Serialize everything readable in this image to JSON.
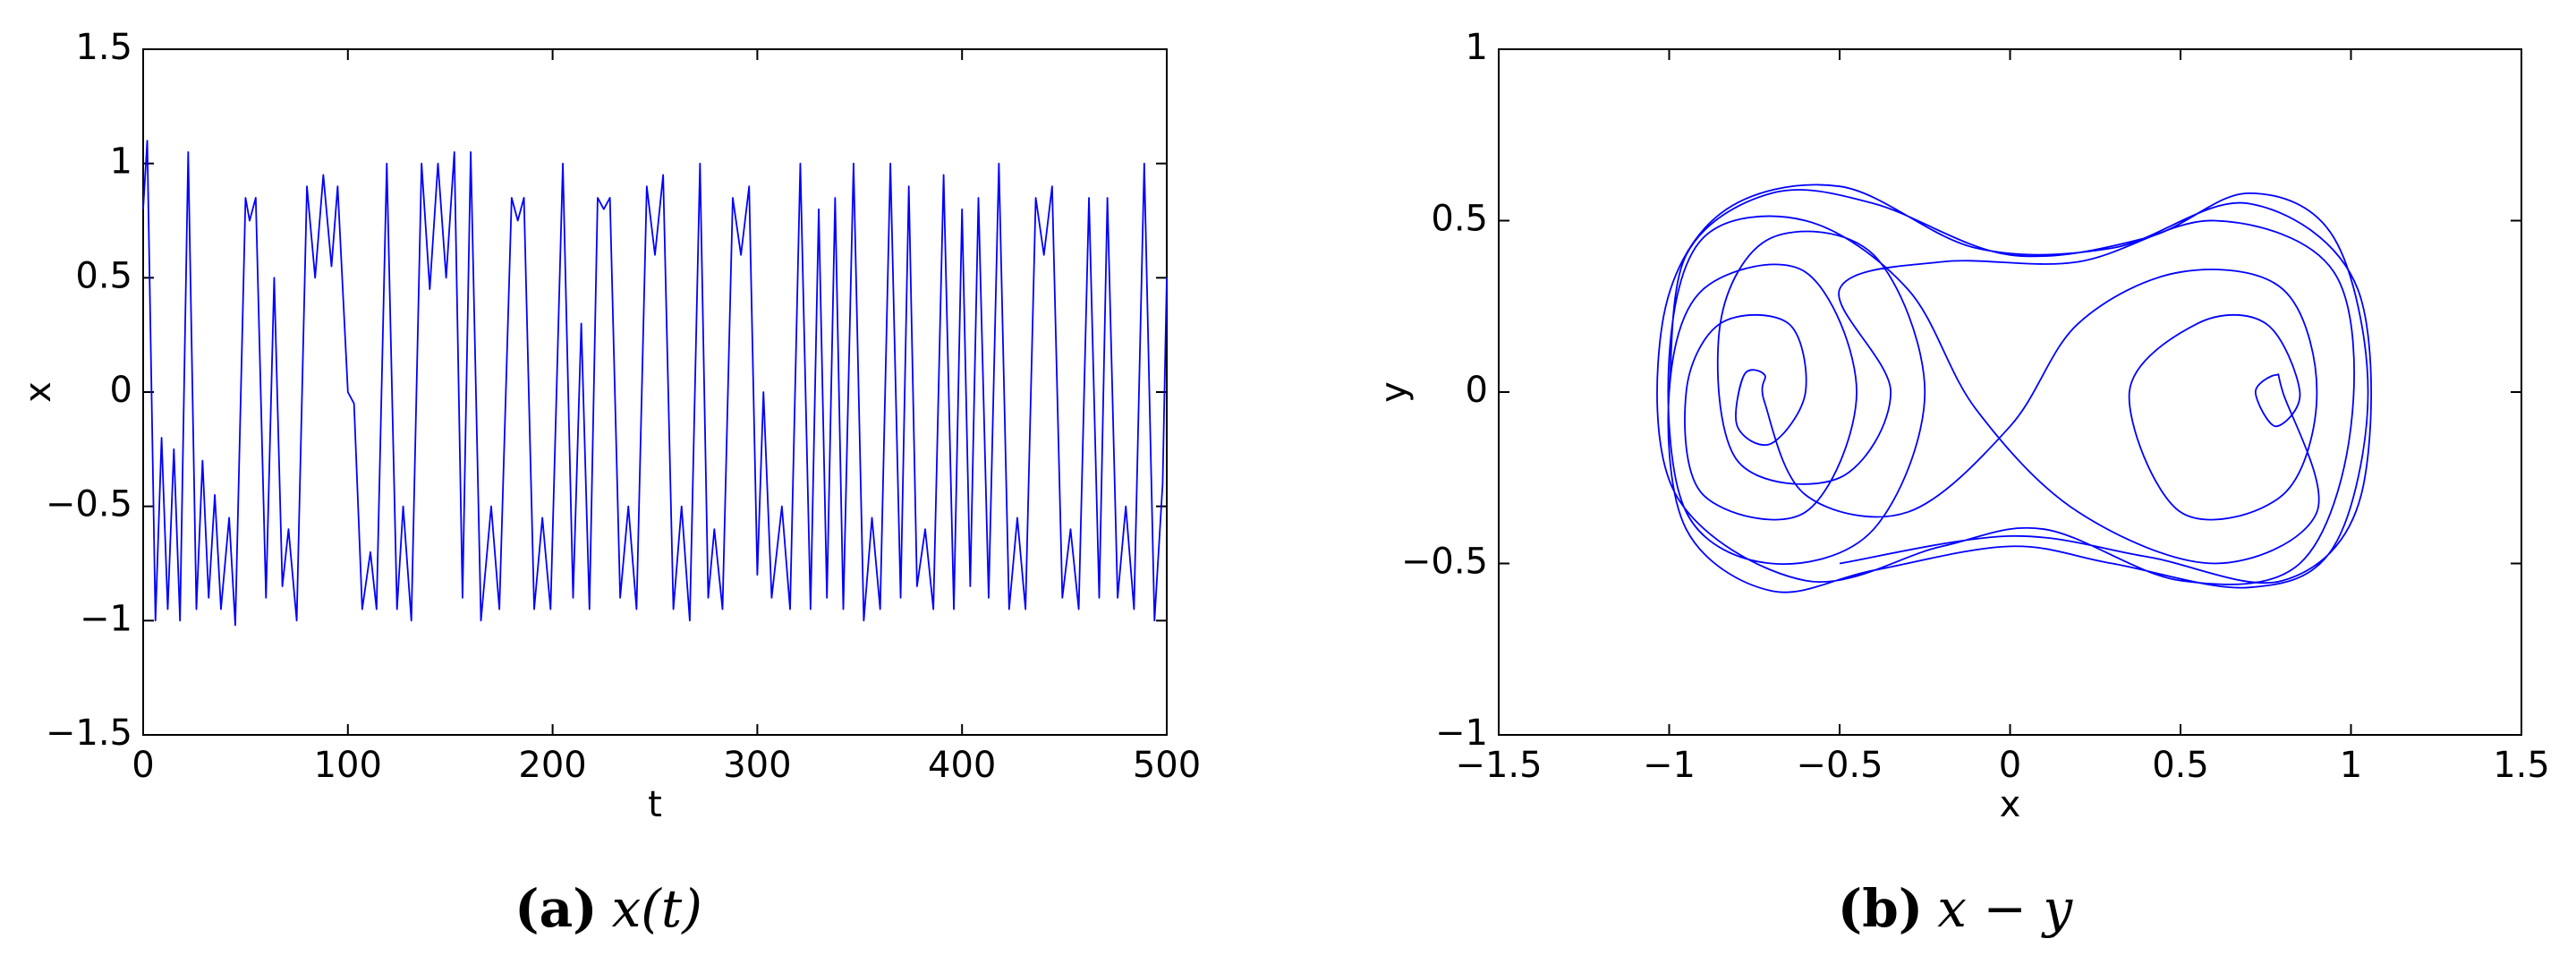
{
  "chart_data": [
    {
      "type": "line",
      "caption_label": "(a)",
      "caption_text": "x(t)",
      "xlabel": "t",
      "ylabel": "x",
      "color": "#0000ff",
      "xlim": [
        0,
        500
      ],
      "xticks": [
        0,
        100,
        200,
        300,
        400,
        500
      ],
      "ylim": [
        -1.5,
        1.5
      ],
      "yticks": [
        {
          "value": -1.5,
          "label": "−1.5"
        },
        {
          "value": -1,
          "label": "−1"
        },
        {
          "value": -0.5,
          "label": "−0.5"
        },
        0,
        0.5,
        1,
        1.5
      ],
      "x": [
        0,
        2,
        6,
        9,
        12,
        15,
        18,
        22,
        26,
        29,
        32,
        35,
        38,
        42,
        45,
        50,
        52,
        55,
        60,
        64,
        68,
        71,
        75,
        80,
        84,
        88,
        92,
        95,
        100,
        103,
        107,
        111,
        114,
        119,
        124,
        127,
        131,
        136,
        140,
        144,
        148,
        152,
        156,
        160,
        165,
        170,
        174,
        180,
        183,
        186,
        191,
        195,
        199,
        205,
        210,
        214,
        218,
        222,
        225,
        228,
        233,
        237,
        241,
        246,
        250,
        254,
        259,
        263,
        267,
        272,
        276,
        279,
        283,
        288,
        292,
        296,
        300,
        303,
        307,
        312,
        316,
        321,
        326,
        330,
        334,
        338,
        342,
        347,
        352,
        356,
        360,
        365,
        370,
        374,
        378,
        382,
        386,
        391,
        396,
        400,
        404,
        408,
        413,
        418,
        423,
        427,
        431,
        436,
        440,
        444,
        449,
        453,
        457,
        462,
        467,
        471,
        476,
        480,
        484,
        489,
        494,
        498,
        500
      ],
      "values": [
        0.8,
        1.1,
        -1.0,
        -0.2,
        -0.95,
        -0.25,
        -1.0,
        1.05,
        -0.95,
        -0.3,
        -0.9,
        -0.45,
        -0.95,
        -0.55,
        -1.02,
        0.85,
        0.75,
        0.85,
        -0.9,
        0.5,
        -0.85,
        -0.6,
        -1.0,
        0.9,
        0.5,
        0.95,
        0.55,
        0.9,
        0.0,
        -0.05,
        -0.95,
        -0.7,
        -0.95,
        1.0,
        -0.95,
        -0.5,
        -1.0,
        1.0,
        0.45,
        1.0,
        0.5,
        1.05,
        -0.9,
        1.05,
        -1.0,
        -0.5,
        -0.95,
        0.85,
        0.75,
        0.85,
        -0.95,
        -0.55,
        -0.95,
        1.0,
        -0.9,
        0.3,
        -0.95,
        0.85,
        0.8,
        0.85,
        -0.9,
        -0.5,
        -0.95,
        0.9,
        0.6,
        0.95,
        -0.95,
        -0.5,
        -1.0,
        1.0,
        -0.9,
        -0.6,
        -0.95,
        0.85,
        0.6,
        0.9,
        -0.8,
        0.0,
        -0.9,
        -0.5,
        -0.95,
        1.0,
        -0.95,
        0.8,
        -0.9,
        0.85,
        -0.95,
        1.0,
        -1.0,
        -0.55,
        -0.95,
        1.0,
        -0.9,
        0.9,
        -0.85,
        -0.6,
        -0.95,
        0.95,
        -0.95,
        0.8,
        -0.85,
        0.85,
        -0.9,
        1.0,
        -0.95,
        -0.55,
        -0.95,
        0.85,
        0.6,
        0.9,
        -0.9,
        -0.6,
        -0.95,
        0.85,
        -0.9,
        0.85,
        -0.9,
        -0.5,
        -0.95,
        1.0,
        -1.0,
        -0.4,
        0.5
      ]
    },
    {
      "type": "phase",
      "caption_label": "(b)",
      "caption_text": "x − y",
      "xlabel": "x",
      "ylabel": "y",
      "color": "#0000ff",
      "xlim": [
        -1.5,
        1.5
      ],
      "xticks": [
        {
          "value": -1.5,
          "label": "−1.5"
        },
        {
          "value": -1,
          "label": "−1"
        },
        {
          "value": -0.5,
          "label": "−0.5"
        },
        0,
        0.5,
        1,
        1.5
      ],
      "ylim": [
        -1,
        1
      ],
      "yticks": [
        {
          "value": -1,
          "label": "−1"
        },
        {
          "value": -0.5,
          "label": "−0.5"
        },
        0,
        0.5,
        1
      ],
      "x": [
        -1.0,
        -0.95,
        -0.7,
        -0.4,
        0,
        0.4,
        0.7,
        0.95,
        1.05,
        0.95,
        0.7,
        0.3,
        0,
        -0.4,
        -0.7,
        -0.95,
        -1.0,
        -0.9,
        -0.6,
        -0.45,
        -0.6,
        -0.9,
        -0.95,
        -0.85,
        -0.65,
        -0.6,
        -0.7,
        -0.8,
        -0.78,
        -0.72,
        -0.72,
        -0.6,
        -0.3,
        0,
        0.2,
        0.5,
        0.8,
        0.9,
        0.8,
        0.5,
        0.35,
        0.55,
        0.75,
        0.85,
        0.78,
        0.72,
        0.78,
        0.8,
        0.9,
        0.6,
        0.2,
        -0.1,
        -0.3,
        -0.6,
        -0.9,
        -1.0,
        -0.95,
        -0.7,
        -0.4,
        -0.25,
        -0.4,
        -0.7,
        -0.85,
        -0.8,
        -0.5,
        -0.35,
        -0.5,
        -0.2,
        0.2,
        0.6,
        0.95,
        1.0,
        0.85,
        0.5,
        0.1,
        -0.2,
        -0.6,
        -0.98,
        -1.02,
        -0.85,
        -0.5,
        -0.1,
        0.3,
        0.7,
        1.02,
        1.03,
        0.8,
        0.4,
        0,
        -0.5
      ],
      "values": [
        0,
        0.4,
        0.58,
        0.55,
        0.4,
        0.45,
        0.58,
        0.45,
        0,
        -0.45,
        -0.57,
        -0.5,
        -0.45,
        -0.52,
        -0.58,
        -0.4,
        0,
        0.3,
        0.35,
        0,
        -0.35,
        -0.3,
        0,
        0.2,
        0.2,
        0,
        -0.15,
        -0.1,
        0.05,
        0.05,
        -0.03,
        -0.3,
        -0.35,
        -0.1,
        0.2,
        0.35,
        0.3,
        0,
        -0.3,
        -0.35,
        0,
        0.2,
        0.2,
        0,
        -0.1,
        0,
        0.05,
        0,
        -0.35,
        -0.5,
        -0.35,
        -0.05,
        0.3,
        0.5,
        0.45,
        0.1,
        -0.35,
        -0.5,
        -0.4,
        0,
        0.4,
        0.45,
        0.2,
        -0.2,
        -0.25,
        0,
        0.3,
        0.38,
        0.38,
        0.5,
        0.35,
        -0.1,
        -0.5,
        -0.55,
        -0.4,
        -0.45,
        -0.55,
        -0.3,
        0.2,
        0.52,
        0.6,
        0.42,
        0.42,
        0.55,
        0.3,
        -0.3,
        -0.55,
        -0.48,
        -0.42,
        -0.5
      ]
    }
  ]
}
